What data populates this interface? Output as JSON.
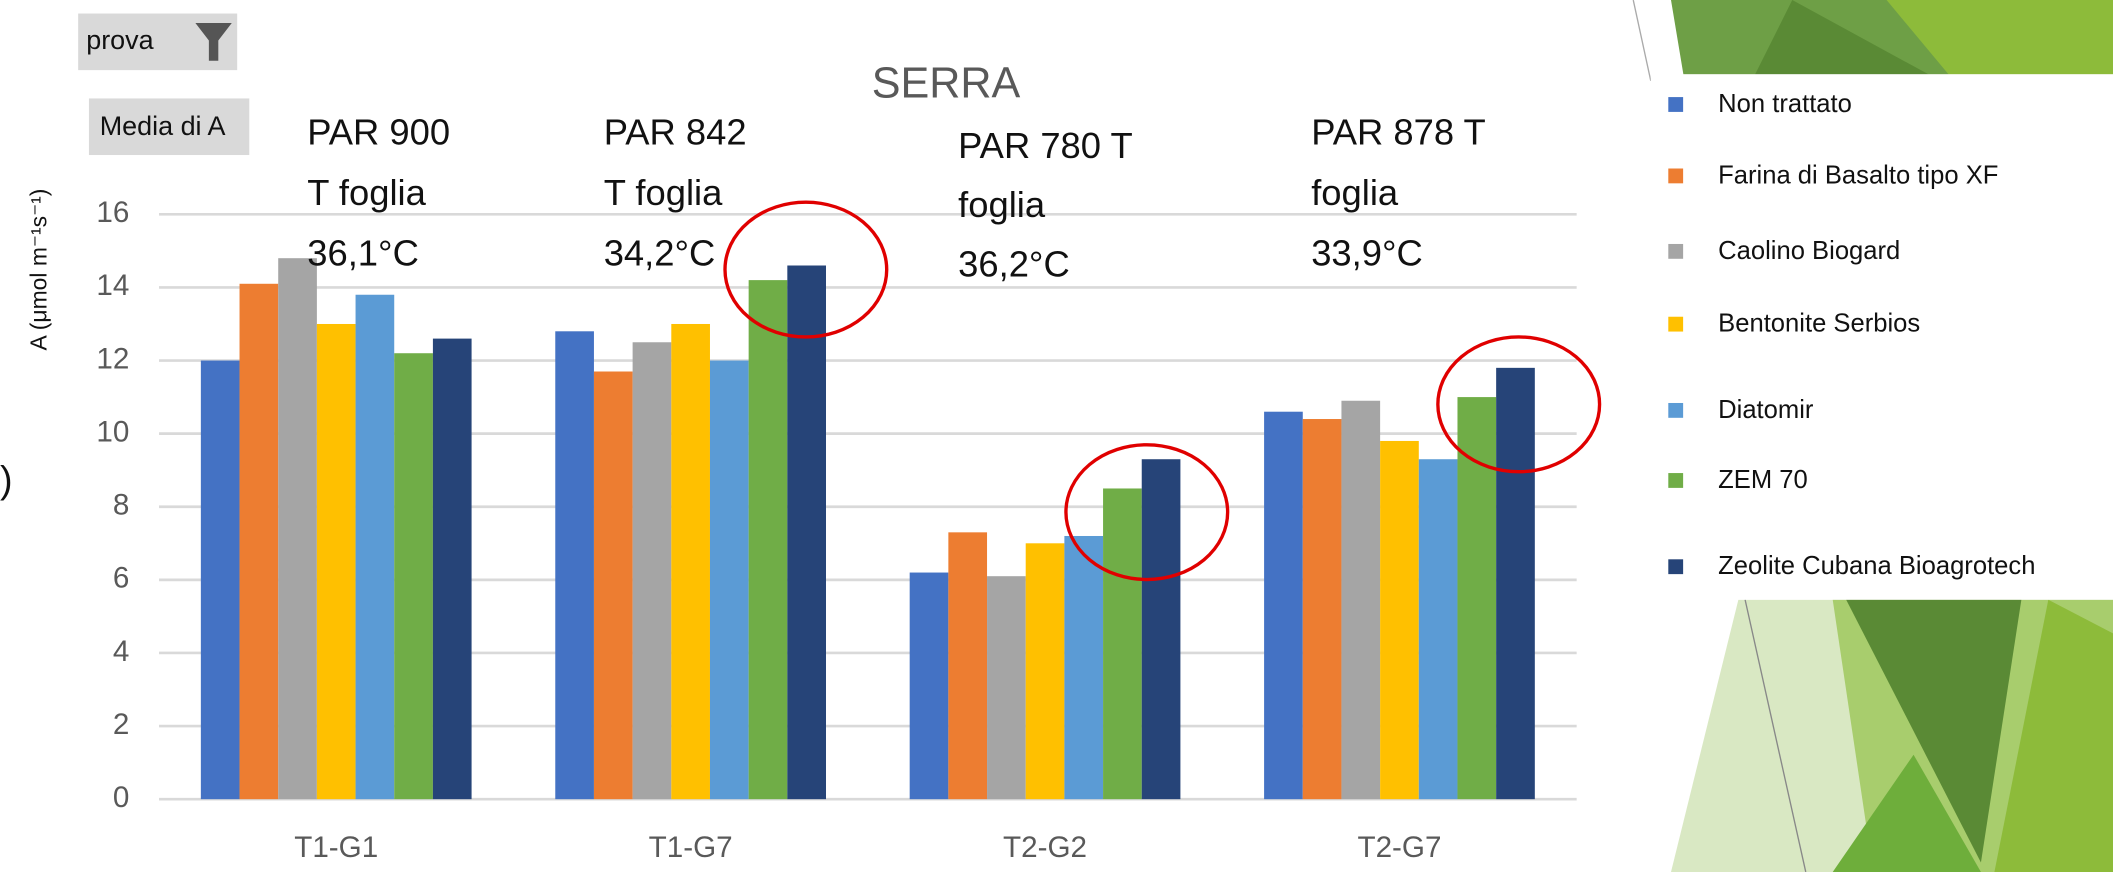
{
  "filter_button": "prova",
  "field_button": "Media di A",
  "stray_text": ")",
  "chart_data": {
    "type": "bar",
    "title": "SERRA",
    "y_label": "A (μmol m⁻¹s⁻¹)",
    "categories": [
      "T1-G1",
      "T1-G7",
      "T2-G2",
      "T2-G7"
    ],
    "series": [
      {
        "name": "Non trattato",
        "color": "#4472c4",
        "values": [
          12.0,
          12.8,
          6.2,
          10.6
        ]
      },
      {
        "name": "Farina di Basalto tipo XF",
        "color": "#ed7d31",
        "values": [
          14.1,
          11.7,
          7.3,
          10.4
        ]
      },
      {
        "name": "Caolino Biogard",
        "color": "#a5a5a5",
        "values": [
          14.8,
          12.5,
          6.1,
          10.9
        ]
      },
      {
        "name": "Bentonite Serbios",
        "color": "#ffc000",
        "values": [
          13.0,
          13.0,
          7.0,
          9.8
        ]
      },
      {
        "name": "Diatomir",
        "color": "#5b9bd5",
        "values": [
          13.8,
          12.0,
          7.2,
          9.3
        ]
      },
      {
        "name": "ZEM 70",
        "color": "#70ad47",
        "values": [
          12.2,
          14.2,
          8.5,
          11.0
        ]
      },
      {
        "name": "Zeolite Cubana Bioagrotech",
        "color": "#264478",
        "values": [
          12.6,
          14.6,
          9.3,
          11.8
        ]
      }
    ],
    "annotations": [
      [
        "PAR 900",
        "T foglia",
        "36,1°C"
      ],
      [
        "PAR 842",
        "T foglia",
        "34,2°C"
      ],
      [
        "PAR 780 T",
        "foglia",
        "36,2°C"
      ],
      [
        "PAR 878 T",
        "foglia",
        "33,9°C"
      ]
    ],
    "ylim": [
      0,
      16
    ],
    "yticks": [
      0,
      2,
      4,
      6,
      8,
      10,
      12,
      14,
      16
    ],
    "grid": true,
    "legend": "right"
  }
}
